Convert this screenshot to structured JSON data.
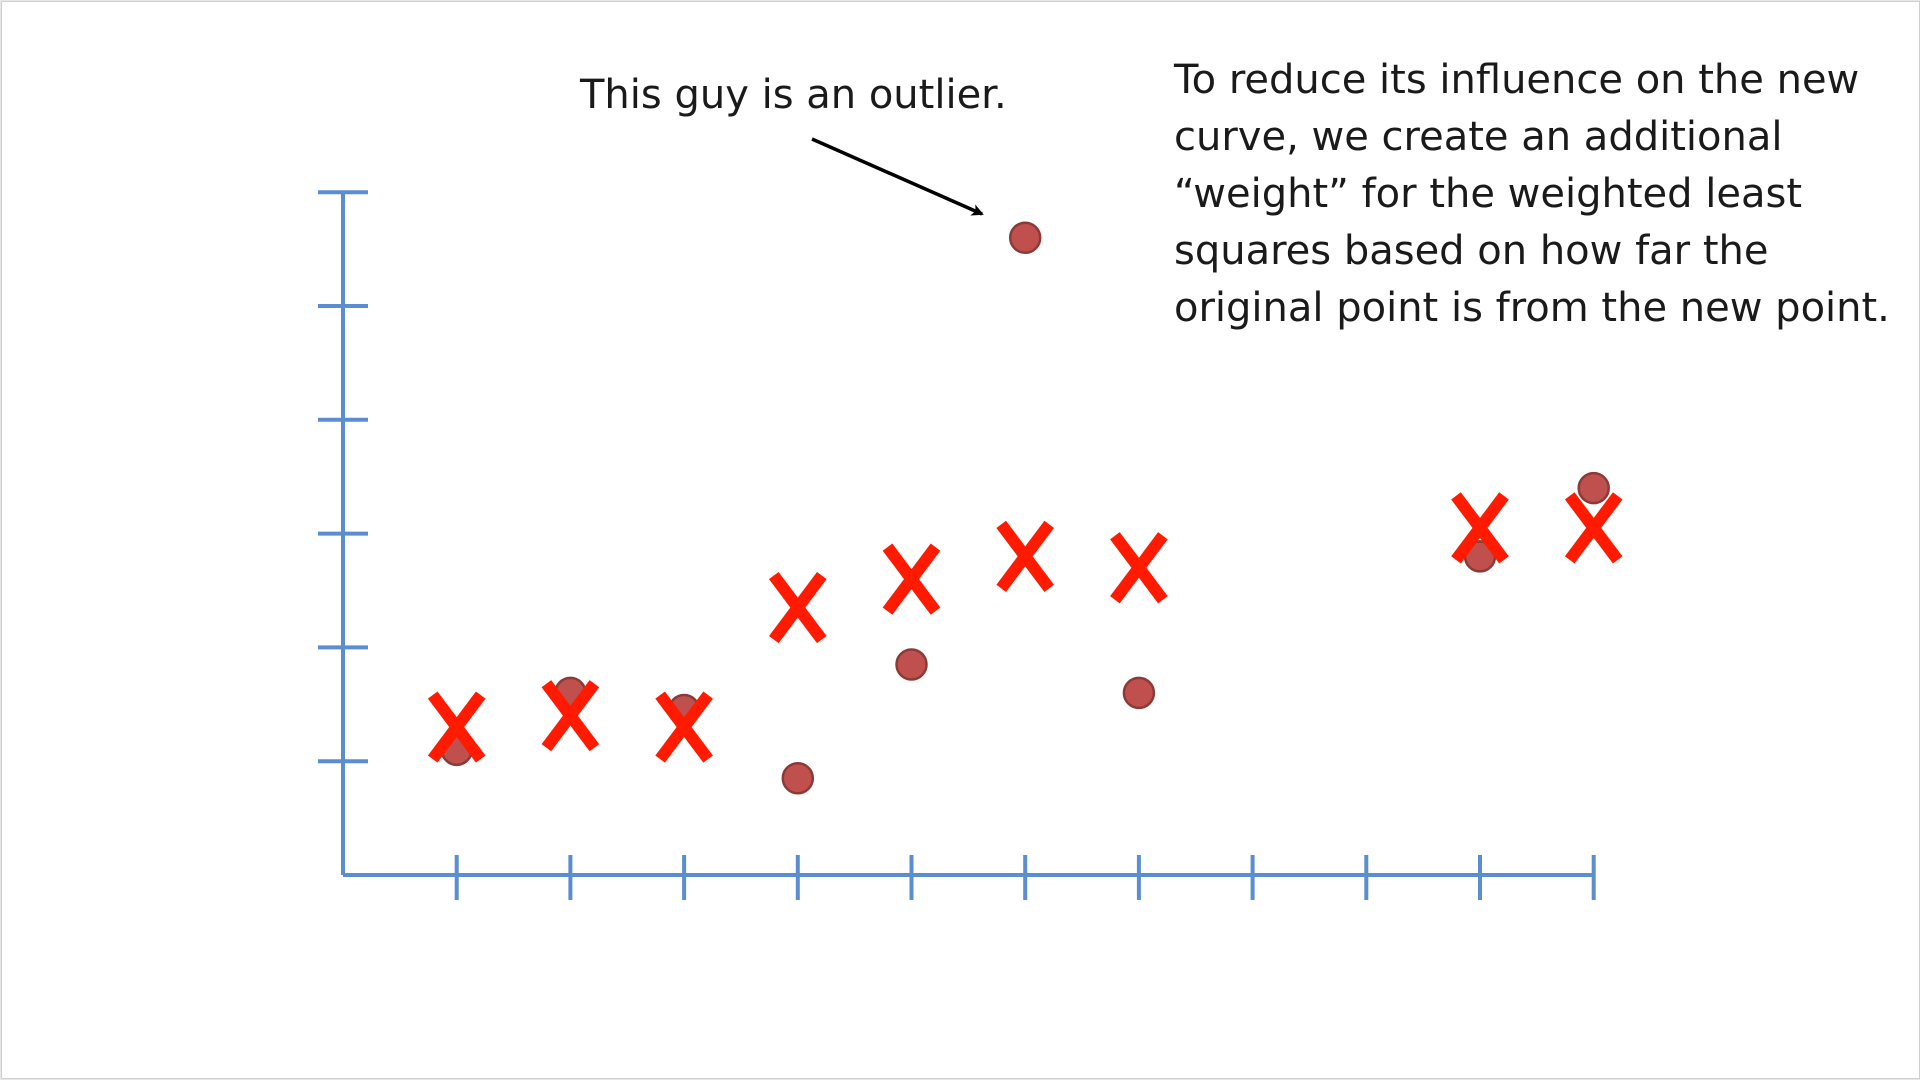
{
  "annotations": {
    "outlier_label": "This guy is an outlier.",
    "note_lines": [
      "To reduce its influence on the new",
      "curve, we create an additional",
      "“weight” for the weighted least",
      "squares based on how far the",
      "original point is from the new point."
    ]
  },
  "colors": {
    "axis": "#5b8ed1",
    "point_fill": "#c0504d",
    "point_stroke": "#8c3a38",
    "x_marker": "#ff1a00",
    "text": "#1a1a1a"
  },
  "chart_data": {
    "type": "scatter",
    "title": "",
    "xlabel": "",
    "ylabel": "",
    "xlim": [
      0,
      11
    ],
    "ylim": [
      0,
      6
    ],
    "x_ticks": [
      1,
      2,
      3,
      4,
      5,
      6,
      7,
      8,
      9,
      10,
      11
    ],
    "y_ticks": [
      1,
      2,
      3,
      4,
      5,
      6
    ],
    "grid": false,
    "series": [
      {
        "marker": "circle",
        "points": [
          {
            "x": 1,
            "y": 1.1
          },
          {
            "x": 2,
            "y": 1.6
          },
          {
            "x": 3,
            "y": 1.45
          },
          {
            "x": 4,
            "y": 0.85
          },
          {
            "x": 5,
            "y": 1.85
          },
          {
            "x": 6,
            "y": 5.6
          },
          {
            "x": 7,
            "y": 1.6
          },
          {
            "x": 10,
            "y": 2.8
          },
          {
            "x": 11,
            "y": 3.4
          }
        ]
      },
      {
        "marker": "x",
        "points": [
          {
            "x": 1,
            "y": 1.3
          },
          {
            "x": 2,
            "y": 1.4
          },
          {
            "x": 3,
            "y": 1.3
          },
          {
            "x": 4,
            "y": 2.35
          },
          {
            "x": 5,
            "y": 2.6
          },
          {
            "x": 6,
            "y": 2.8
          },
          {
            "x": 7,
            "y": 2.7
          },
          {
            "x": 10,
            "y": 3.05
          },
          {
            "x": 11,
            "y": 3.05
          }
        ]
      }
    ]
  }
}
